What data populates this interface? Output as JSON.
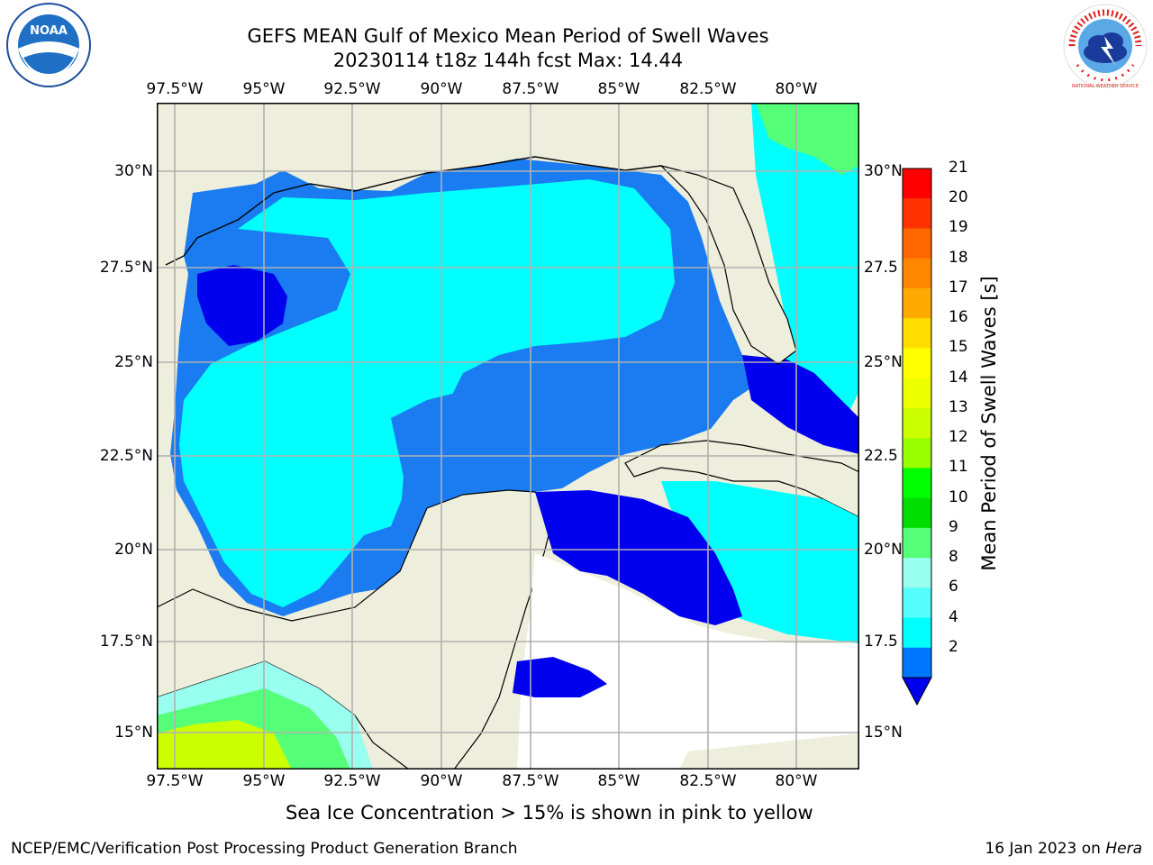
{
  "header": {
    "title_line1": "GEFS MEAN Gulf of Mexico Mean Period of Swell Waves",
    "title_line2": "20230114 t18z 144h fcst   Max: 14.44"
  },
  "logos": {
    "left_text": "NOAA",
    "right_text": "NATIONAL WEATHER SERVICE"
  },
  "map": {
    "lon_labels": [
      "97.5°W",
      "95°W",
      "92.5°W",
      "90°W",
      "87.5°W",
      "85°W",
      "82.5°W",
      "80°W"
    ],
    "lat_labels_left": [
      "30°N",
      "27.5°N",
      "25°N",
      "22.5°N",
      "20°N",
      "17.5°N",
      "15°N"
    ],
    "lat_labels_right": [
      "30°N",
      "27.5",
      "25°N",
      "22.5",
      "20°N",
      "17.5",
      "15°N"
    ],
    "colors": {
      "land": "#eeeedd",
      "grid": "#b0b0b0",
      "no_data": "#ffffff"
    }
  },
  "colorbar": {
    "title": "Mean Period of Swell Waves [s]",
    "ticks": [
      "21",
      "20",
      "19",
      "18",
      "17",
      "16",
      "15",
      "14",
      "13",
      "12",
      "11",
      "10",
      "9",
      "8",
      "6",
      "4",
      "2"
    ],
    "colors": [
      "#ff0000",
      "#ff3300",
      "#ff6600",
      "#ff8800",
      "#ffaa00",
      "#ffdd00",
      "#ffff00",
      "#eeff00",
      "#ccff00",
      "#99ff00",
      "#00ff00",
      "#00dd00",
      "#55ff77",
      "#99ffee",
      "#55ffff",
      "#00ffff",
      "#0077ff"
    ],
    "under_color": "#0000ee"
  },
  "sea_ice_note": "Sea Ice Concentration > 15% is shown in pink to yellow",
  "footer": {
    "left": "NCEP/EMC/Verification Post Processing Product Generation Branch",
    "right_prefix": "16 Jan 2023 on ",
    "right_machine": "Hera"
  }
}
